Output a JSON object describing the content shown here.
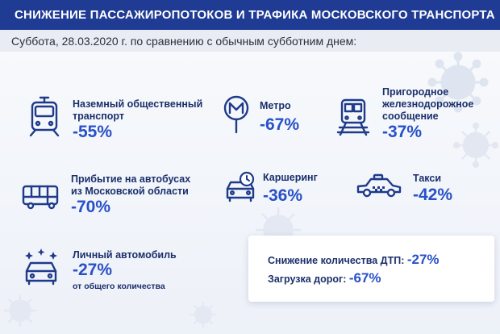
{
  "header": {
    "title": "СНИЖЕНИЕ ПАССАЖИРОПОТОКОВ И ТРАФИКА МОСКОВСКОГО ТРАНСПОРТА"
  },
  "subtitle": "Суббота, 28.03.2020 г. по сравнению с обычным субботним днем:",
  "colors": {
    "header_bg": "#1f3b94",
    "value": "#2850c8",
    "label": "#1b2f6b",
    "icon": "#1e3a8a"
  },
  "items": [
    {
      "label_line1": "Наземный общественный",
      "label_line2": "транспорт",
      "value": "-55%",
      "icon": "tram-icon"
    },
    {
      "label": "Метро",
      "value": "-67%",
      "icon": "metro-icon"
    },
    {
      "label_line1": "Пригородное",
      "label_line2": "железнодорожное",
      "label_line3": "сообщение",
      "value": "-37%",
      "icon": "train-icon"
    },
    {
      "label_line1": "Прибытие на автобусах",
      "label_line2": "из Московской области",
      "value": "-70%",
      "icon": "bus-icon"
    },
    {
      "label": "Каршеринг",
      "value": "-36%",
      "icon": "carsharing-icon"
    },
    {
      "label": "Такси",
      "value": "-42%",
      "icon": "taxi-icon"
    },
    {
      "label": "Личный автомобиль",
      "value": "-27%",
      "note": "от общего количества",
      "icon": "car-icon"
    }
  ],
  "card": {
    "accidents_label": "Снижение количества ДТП:",
    "accidents_value": "-27%",
    "roads_label": "Загрузка дорог:",
    "roads_value": "-67%"
  }
}
